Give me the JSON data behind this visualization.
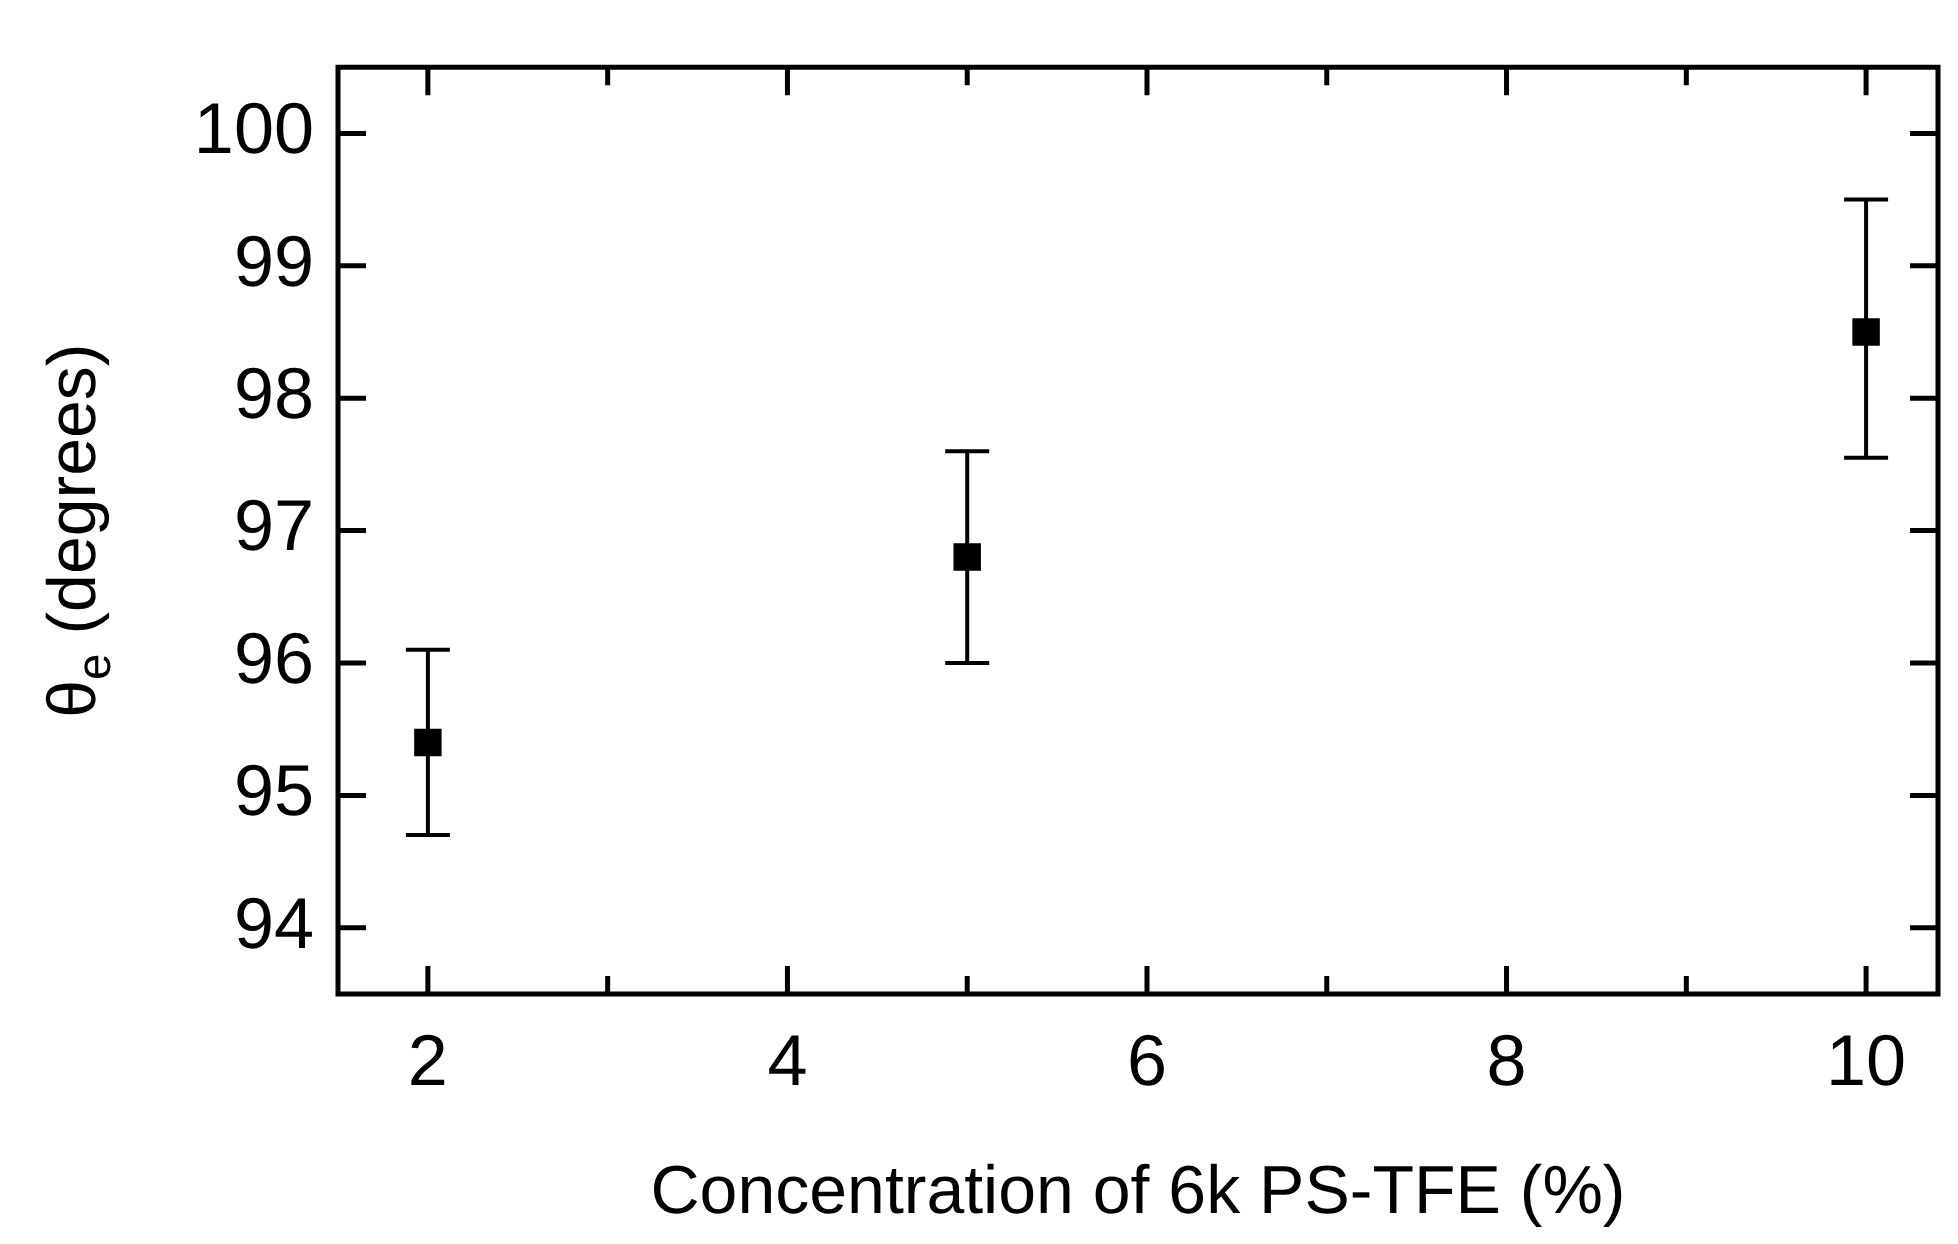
{
  "chart_data": {
    "type": "scatter",
    "xlabel": "Concentration of 6k PS-TFE (%)",
    "ylabel": "θ$_{e}$ (degrees)",
    "x": [
      2,
      5,
      10
    ],
    "values": [
      95.4,
      96.8,
      98.5
    ],
    "errors": [
      0.7,
      0.8,
      [
        97.55,
        99.5
      ]
    ],
    "color": "#000000",
    "marker": "square",
    "xlim": [
      1.5,
      10.4
    ],
    "xticks": [
      2,
      {
        "value": 3,
        "label": null
      },
      4,
      {
        "value": 5,
        "label": null
      },
      6,
      {
        "value": 7,
        "label": null
      },
      8,
      {
        "value": 9,
        "label": null
      },
      10
    ],
    "ylim": [
      93.5,
      100.5
    ],
    "yticks": [
      94,
      95,
      96,
      97,
      98,
      99,
      100
    ],
    "grid": false,
    "legend": false
  }
}
